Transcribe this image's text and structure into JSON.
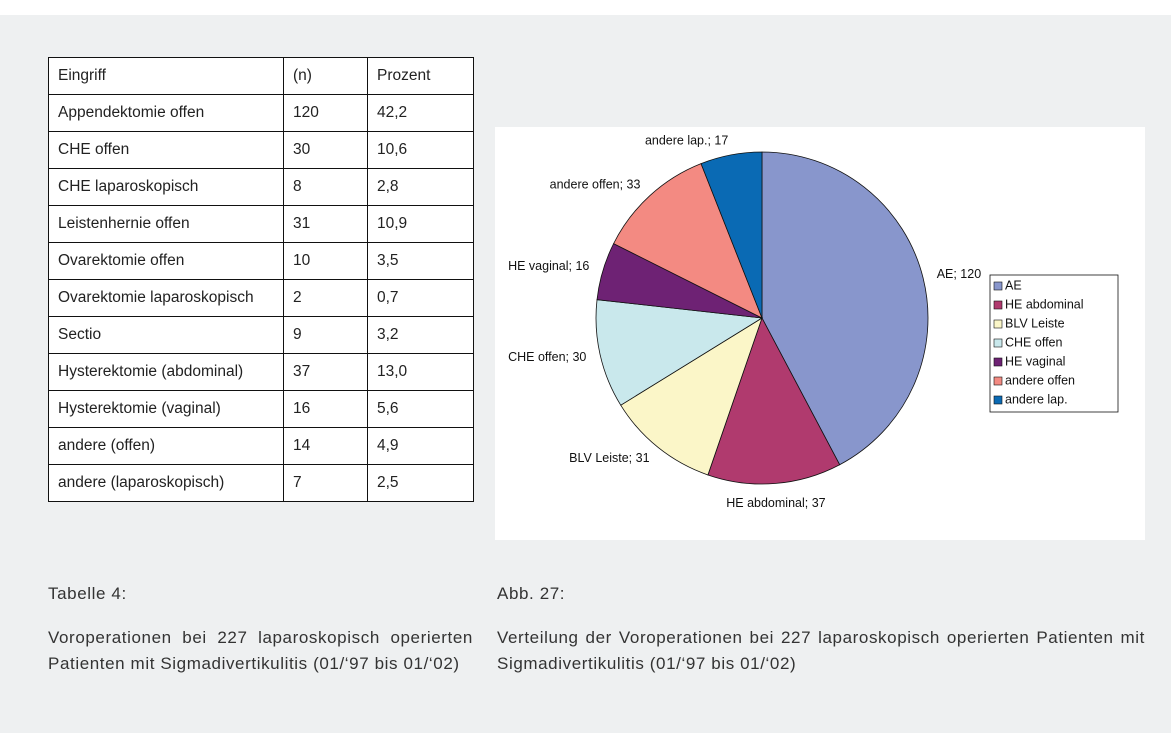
{
  "table": {
    "header": [
      "Eingriff",
      "(n)",
      "Prozent"
    ],
    "rows": [
      [
        "Appendektomie offen",
        "120",
        "42,2"
      ],
      [
        "CHE offen",
        "30",
        "10,6"
      ],
      [
        "CHE laparoskopisch",
        "8",
        "2,8"
      ],
      [
        "Leistenhernie offen",
        "31",
        "10,9"
      ],
      [
        "Ovarektomie offen",
        "10",
        "3,5"
      ],
      [
        "Ovarektomie laparoskopisch",
        "2",
        "0,7"
      ],
      [
        "Sectio",
        "9",
        "3,2"
      ],
      [
        "Hysterektomie (abdominal)",
        "37",
        "13,0"
      ],
      [
        "Hysterektomie (vaginal)",
        "16",
        "5,6"
      ],
      [
        "andere (offen)",
        "14",
        "4,9"
      ],
      [
        "andere (laparoskopisch)",
        "7",
        "2,5"
      ]
    ]
  },
  "table_caption": {
    "label": "Tabelle 4:",
    "text": "Voroperationen bei 227 laparoskopisch operierten Patienten mit Sigmadivertikulitis (01/‘97 bis 01/‘02)"
  },
  "chart_data": {
    "type": "pie",
    "categories": [
      "AE",
      "HE abdominal",
      "BLV Leiste",
      "CHE offen",
      "HE vaginal",
      "andere offen",
      "andere lap."
    ],
    "values": [
      120,
      37,
      31,
      30,
      16,
      33,
      17
    ],
    "value_labels": [
      "AE; 120",
      "HE abdominal; 37",
      "BLV Leiste; 31",
      "CHE offen; 30",
      "HE vaginal; 16",
      "andere offen; 33",
      "andere lap.; 17"
    ],
    "colors": [
      "#8896cc",
      "#b03a6e",
      "#fbf6c8",
      "#c9e8ec",
      "#6e2274",
      "#f38a82",
      "#0a6ab4"
    ],
    "legend": "right"
  },
  "figure_caption": {
    "label": "Abb. 27:",
    "text": "Verteilung der Voroperationen bei 227 laparoskopisch operierten Patienten mit Sigmadivertikulitis (01/‘97 bis 01/‘02)"
  }
}
